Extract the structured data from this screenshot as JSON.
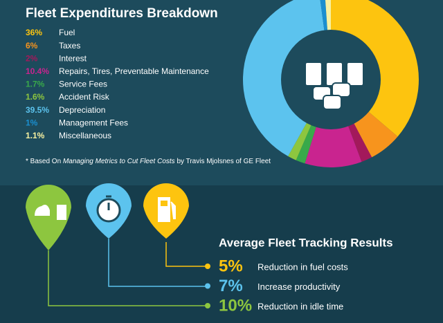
{
  "chart_data": {
    "type": "pie",
    "title": "Fleet Expenditures Breakdown",
    "categories": [
      "Fuel",
      "Taxes",
      "Interest",
      "Repairs, Tires, Preventable Maintenance",
      "Service Fees",
      "Accident Risk",
      "Depreciation",
      "Management Fees",
      "Miscellaneous"
    ],
    "values": [
      36,
      6,
      2,
      10.4,
      1.7,
      1.6,
      39.5,
      1,
      1.1
    ],
    "value_labels": [
      "36%",
      "6%",
      "2%",
      "10.4%",
      "1.7%",
      "1.6%",
      "39.5%",
      "1%",
      "1.1%"
    ],
    "colors": [
      "#fdc40f",
      "#f7941d",
      "#a3195b",
      "#c9248f",
      "#39a94a",
      "#8dc63f",
      "#5cc3ee",
      "#1a8fd0",
      "#f7f1a1"
    ],
    "footnote": {
      "prefix": "* Based On",
      "source": "Managing Metrics to Cut Fleet Costs",
      "suffix": "by Travis Mjolsnes of GE Fleet"
    }
  },
  "results": {
    "title": "Average Fleet Tracking Results",
    "items": [
      {
        "value": "5%",
        "text": "Reduction in fuel costs",
        "color": "#fdc40f"
      },
      {
        "value": "7%",
        "text": "Increase productivity",
        "color": "#5cc3ee"
      },
      {
        "value": "10%",
        "text": "Reduction in idle time",
        "color": "#8dc63f"
      }
    ]
  }
}
